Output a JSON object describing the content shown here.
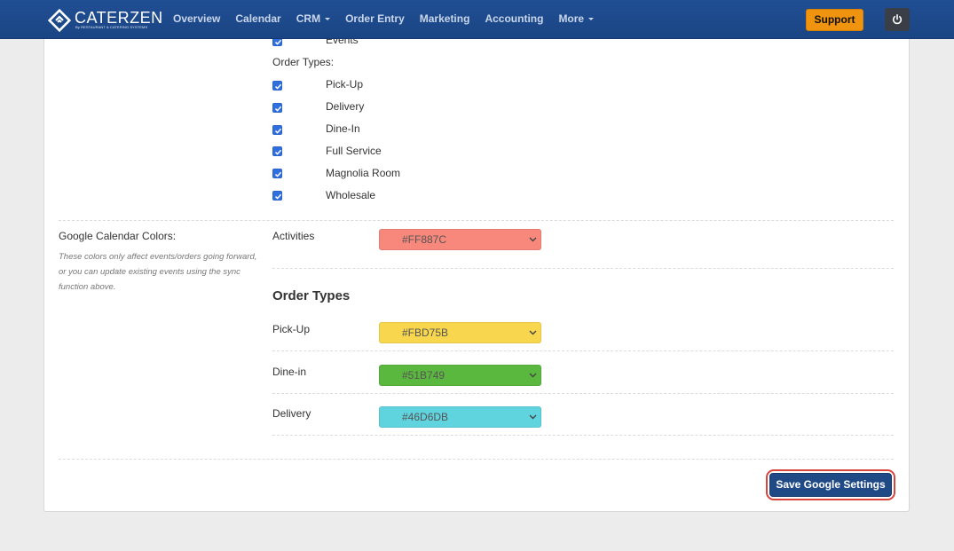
{
  "header": {
    "brand": "CATERZEN",
    "tagline": "By RESTAURANT & CATERING SYSTEMS",
    "nav": [
      {
        "label": "Overview"
      },
      {
        "label": "Calendar"
      },
      {
        "label": "CRM"
      },
      {
        "label": "Order Entry"
      },
      {
        "label": "Marketing"
      },
      {
        "label": "Accounting"
      },
      {
        "label": "More"
      }
    ],
    "support_label": "Support",
    "brand_color": "#1d4a8c",
    "support_color": "#f0930e"
  },
  "sync_options": {
    "events_label": "Events",
    "order_types_heading": "Order Types:",
    "order_types": [
      {
        "label": "Pick-Up",
        "checked": true
      },
      {
        "label": "Delivery",
        "checked": true
      },
      {
        "label": "Dine-In",
        "checked": true
      },
      {
        "label": "Full Service",
        "checked": true
      },
      {
        "label": "Magnolia Room",
        "checked": true
      },
      {
        "label": "Wholesale",
        "checked": true
      }
    ]
  },
  "calendar_colors": {
    "title": "Google Calendar Colors:",
    "note": "These colors only affect events/orders going forward, or you can update existing events using the sync function above.",
    "activities": {
      "label": "Activities",
      "value": "#FF887C",
      "color": "#f8877c"
    },
    "order_types_heading": "Order Types",
    "order_types": [
      {
        "label": "Pick-Up",
        "value": "#FBD75B",
        "color": "#f8d64d"
      },
      {
        "label": "Dine-in",
        "value": "#51B749",
        "color": "#5bb83f"
      },
      {
        "label": "Delivery",
        "value": "#46D6DB",
        "color": "#5fd3de"
      }
    ]
  },
  "actions": {
    "save_label": "Save Google Settings",
    "highlight_color": "#d9453c"
  }
}
